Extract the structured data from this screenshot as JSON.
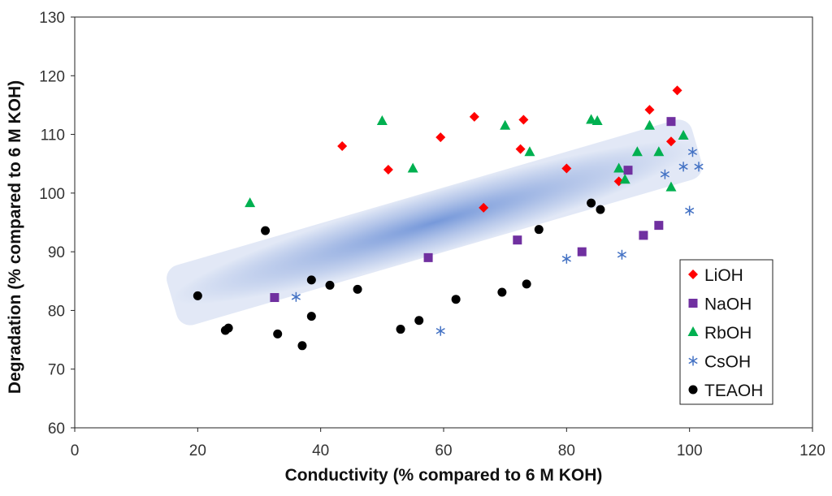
{
  "chart_data": {
    "type": "scatter",
    "title": "",
    "xlabel": "Conductivity (% compared to 6 M KOH)",
    "ylabel": "Degradation (% compared to 6 M KOH)",
    "xlim": [
      0,
      120
    ],
    "ylim": [
      60,
      130
    ],
    "xticks": [
      0,
      20,
      40,
      60,
      80,
      100,
      120
    ],
    "yticks": [
      60,
      70,
      80,
      90,
      100,
      110,
      120,
      130
    ],
    "grid": false,
    "legend_position": "bottom-right",
    "trend_band": {
      "description": "shaded trend region",
      "start": [
        17.5,
        82.5
      ],
      "end": [
        99.5,
        107.5
      ],
      "half_width_y": 5.5
    },
    "series": [
      {
        "name": "LiOH",
        "marker": "diamond",
        "color": "#ff0000",
        "points": [
          [
            43.5,
            108
          ],
          [
            51,
            104
          ],
          [
            59.5,
            109.5
          ],
          [
            65,
            113
          ],
          [
            66.5,
            97.5
          ],
          [
            72.5,
            107.5
          ],
          [
            73,
            112.5
          ],
          [
            80,
            104.2
          ],
          [
            88.5,
            102
          ],
          [
            93.5,
            114.2
          ],
          [
            97,
            108.8
          ],
          [
            98,
            117.5
          ]
        ]
      },
      {
        "name": "NaOH",
        "marker": "square",
        "color": "#7030a0",
        "points": [
          [
            32.5,
            82.2
          ],
          [
            57.5,
            89
          ],
          [
            72,
            92
          ],
          [
            82.5,
            90
          ],
          [
            90,
            103.9
          ],
          [
            92.5,
            92.8
          ],
          [
            95,
            94.5
          ],
          [
            97,
            112.2
          ]
        ]
      },
      {
        "name": "RbOH",
        "marker": "triangle",
        "color": "#00b050",
        "points": [
          [
            28.5,
            98.3
          ],
          [
            50,
            112.3
          ],
          [
            55,
            104.2
          ],
          [
            70,
            111.5
          ],
          [
            74,
            107
          ],
          [
            84,
            112.5
          ],
          [
            85,
            112.3
          ],
          [
            88.5,
            104.2
          ],
          [
            89.5,
            102.3
          ],
          [
            91.5,
            107
          ],
          [
            93.5,
            111.5
          ],
          [
            95,
            107
          ],
          [
            97,
            101
          ],
          [
            99,
            109.8
          ]
        ]
      },
      {
        "name": "CsOH",
        "marker": "asterisk",
        "color": "#4472c4",
        "points": [
          [
            36,
            82.3
          ],
          [
            59.5,
            76.5
          ],
          [
            80,
            88.8
          ],
          [
            89,
            89.5
          ],
          [
            96,
            103.2
          ],
          [
            99,
            104.5
          ],
          [
            100,
            97
          ],
          [
            100.5,
            107
          ],
          [
            101.5,
            104.5
          ]
        ]
      },
      {
        "name": "TEAOH",
        "marker": "circle",
        "color": "#000000",
        "points": [
          [
            20,
            82.5
          ],
          [
            24.5,
            76.6
          ],
          [
            25,
            77
          ],
          [
            31,
            93.6
          ],
          [
            33,
            76
          ],
          [
            37,
            74
          ],
          [
            38.5,
            85.2
          ],
          [
            38.5,
            79
          ],
          [
            41.5,
            84.3
          ],
          [
            46,
            83.6
          ],
          [
            53,
            76.8
          ],
          [
            56,
            78.3
          ],
          [
            62,
            81.9
          ],
          [
            69.5,
            83.1
          ],
          [
            73.5,
            84.5
          ],
          [
            75.5,
            93.8
          ],
          [
            84,
            98.3
          ],
          [
            85.5,
            97.2
          ]
        ]
      }
    ]
  }
}
